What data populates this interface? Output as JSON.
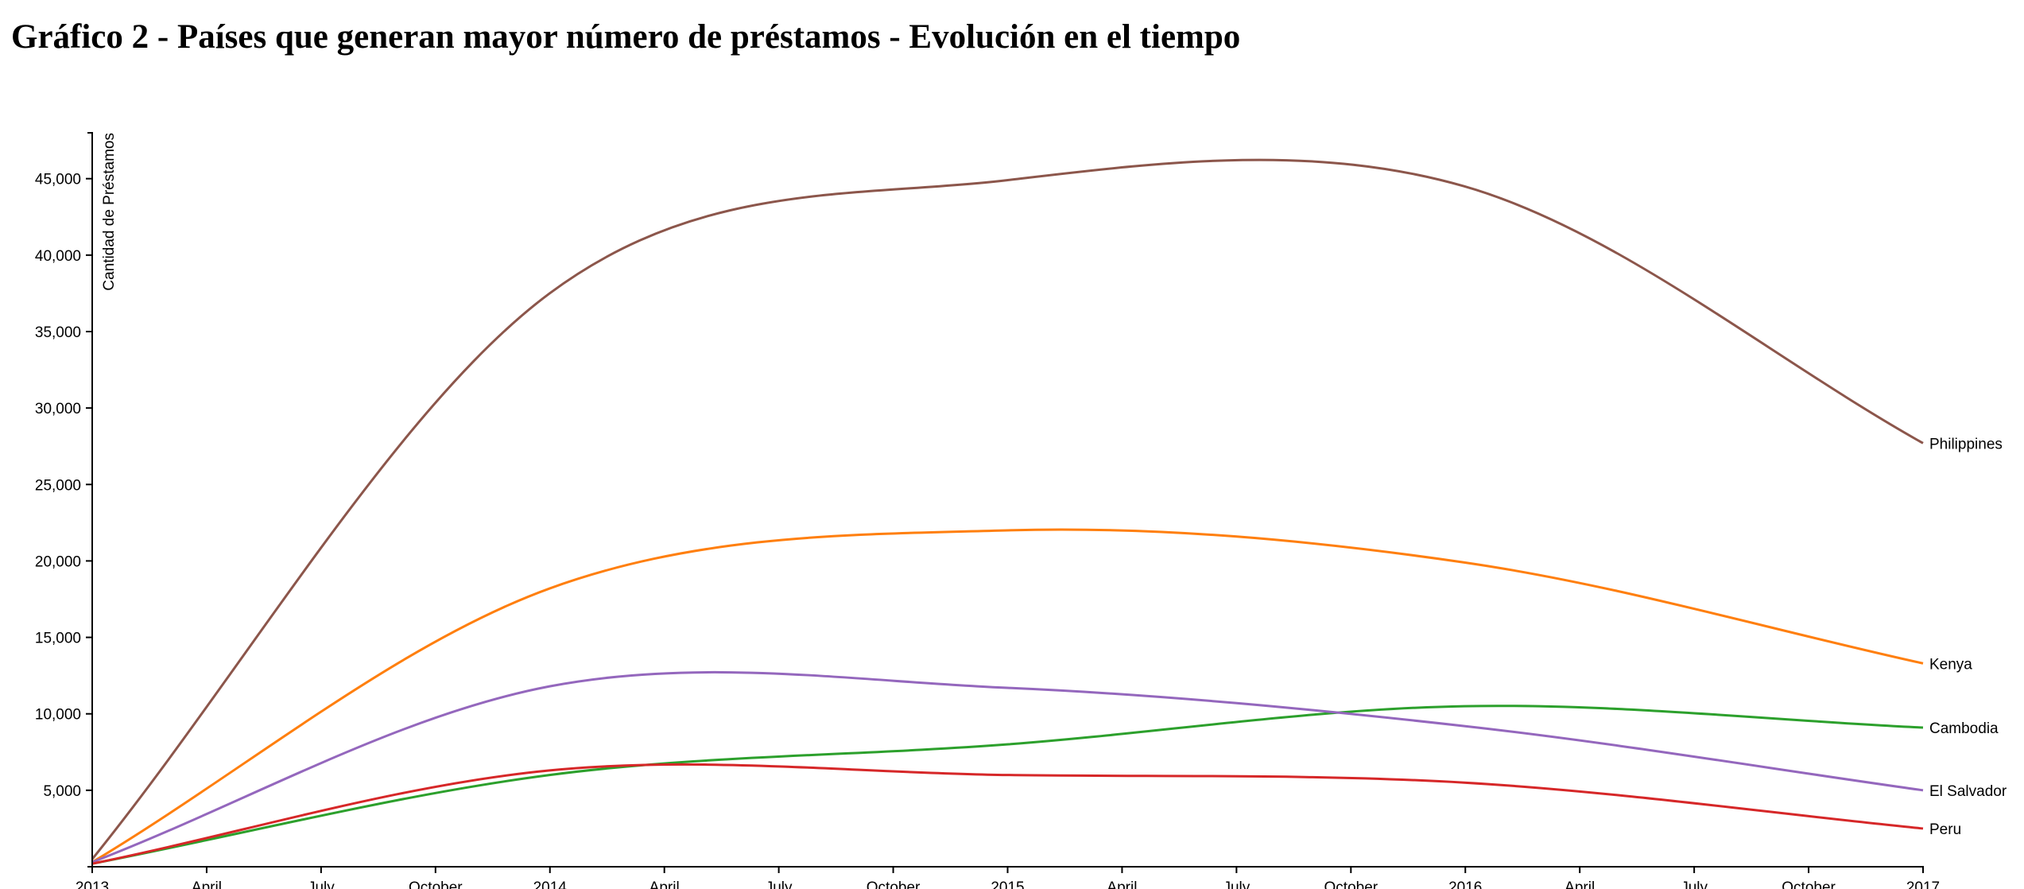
{
  "title": "Gráfico 2 - Países que generan mayor número de préstamos - Evolución en el tiempo",
  "chart_data": {
    "type": "line",
    "title": "Gráfico 2 - Países que generan mayor número de préstamos - Evolución en el tiempo",
    "xlabel": "",
    "ylabel": "Cantidad de Préstamos",
    "x": [
      "2013-01-01",
      "2014-01-01",
      "2015-01-01",
      "2016-01-01",
      "2017-01-01"
    ],
    "xlim": [
      "2013-01-01",
      "2017-01-01"
    ],
    "ylim": [
      0,
      48000
    ],
    "x_ticks": [
      "2013",
      "April",
      "July",
      "October",
      "2014",
      "April",
      "July",
      "October",
      "2015",
      "April",
      "July",
      "October",
      "2016",
      "April",
      "July",
      "October",
      "2017"
    ],
    "y_ticks": [
      "5,000",
      "10,000",
      "15,000",
      "20,000",
      "25,000",
      "30,000",
      "35,000",
      "40,000",
      "45,000"
    ],
    "y_tick_values": [
      5000,
      10000,
      15000,
      20000,
      25000,
      30000,
      35000,
      40000,
      45000
    ],
    "grid": false,
    "legend": "series labels at line ends (right)",
    "series": [
      {
        "name": "Philippines",
        "color": "#8c564b",
        "values": [
          500,
          37500,
          44900,
          44500,
          27700
        ]
      },
      {
        "name": "Kenya",
        "color": "#ff7f0e",
        "values": [
          300,
          18200,
          22000,
          19900,
          13300
        ]
      },
      {
        "name": "Cambodia",
        "color": "#2ca02c",
        "values": [
          200,
          6000,
          8000,
          10500,
          9100
        ]
      },
      {
        "name": "El Salvador",
        "color": "#9467bd",
        "values": [
          300,
          11800,
          11700,
          9200,
          5000
        ]
      },
      {
        "name": "Peru",
        "color": "#d62728",
        "values": [
          200,
          6300,
          6000,
          5500,
          2500
        ]
      }
    ]
  }
}
